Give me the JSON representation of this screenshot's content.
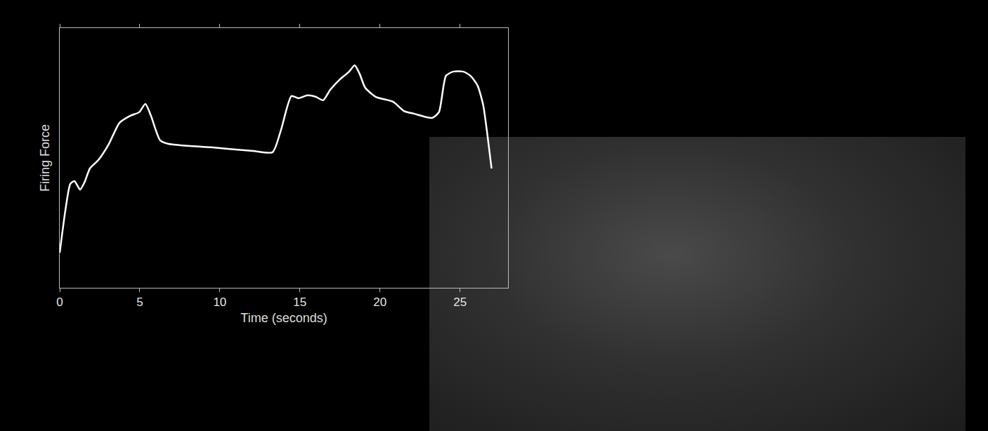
{
  "chart_data": {
    "type": "line",
    "x_label": "Time (seconds)",
    "y_label": "Firing Force",
    "x": [
      0,
      0.35,
      0.66,
      0.92,
      1.27,
      1.54,
      1.89,
      2.41,
      3.07,
      3.73,
      4.39,
      4.96,
      5.35,
      5.7,
      6.27,
      6.8,
      9.43,
      12.06,
      13.29,
      13.82,
      14.47,
      14.91,
      15.48,
      16.0,
      16.45,
      16.89,
      17.54,
      18.07,
      18.42,
      18.73,
      19.08,
      19.74,
      20.83,
      21.49,
      22.15,
      23.25,
      23.68,
      24.12,
      24.56,
      25.22,
      25.66,
      26.1,
      26.45,
      26.71,
      26.97
    ],
    "values": [
      13.5,
      29.7,
      40,
      41.1,
      37.8,
      40.5,
      46,
      49.2,
      55.4,
      63.5,
      66.2,
      67.6,
      70.8,
      66.2,
      56.8,
      55.4,
      54.1,
      52.7,
      52.2,
      60.8,
      73.8,
      73,
      74.1,
      73.5,
      72.2,
      76.2,
      80.5,
      83.2,
      85.7,
      82.4,
      77,
      73.5,
      71.6,
      68.1,
      67,
      65.4,
      67.6,
      81.6,
      83.2,
      83.2,
      81.6,
      77.8,
      70.3,
      58.9,
      45.9
    ],
    "color": "#ffffff",
    "line_style": "solid",
    "xlim": [
      0,
      28
    ],
    "xticks": [
      0,
      5,
      10,
      15,
      20,
      25
    ],
    "ylim": [
      0,
      100
    ],
    "yticks": [],
    "grid": false,
    "tick_labels": "x"
  }
}
